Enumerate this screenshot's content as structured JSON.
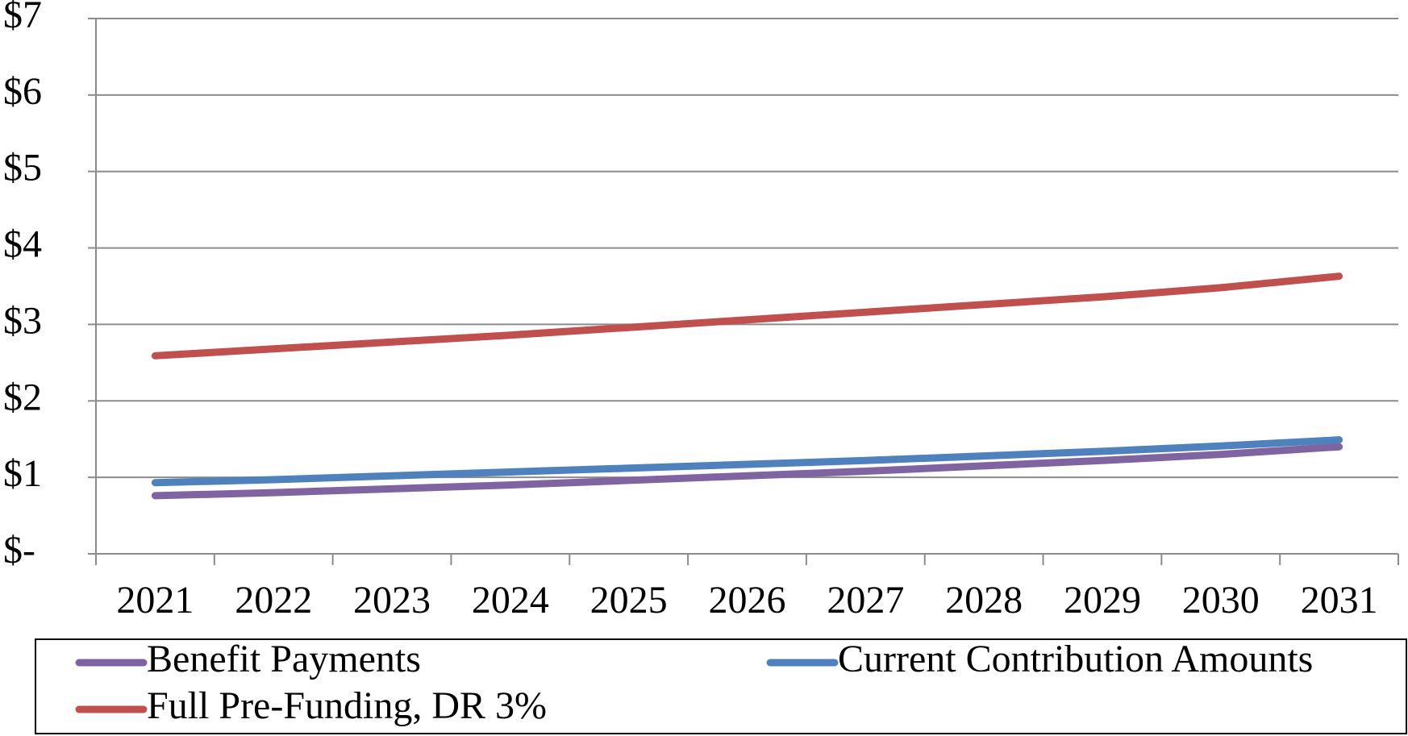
{
  "chart_data": {
    "type": "line",
    "categories": [
      "2021",
      "2022",
      "2023",
      "2024",
      "2025",
      "2026",
      "2027",
      "2028",
      "2029",
      "2030",
      "2031"
    ],
    "series": [
      {
        "name": "Benefit Payments",
        "color": "#8064a2",
        "values": [
          0.76,
          0.8,
          0.85,
          0.9,
          0.96,
          1.02,
          1.08,
          1.15,
          1.22,
          1.3,
          1.4
        ]
      },
      {
        "name": "Current Contribution Amounts",
        "color": "#4f81bd",
        "values": [
          0.93,
          0.97,
          1.02,
          1.07,
          1.12,
          1.17,
          1.22,
          1.28,
          1.34,
          1.41,
          1.49
        ]
      },
      {
        "name": "Full Pre-Funding, DR 3%",
        "color": "#c0504d",
        "values": [
          2.59,
          2.68,
          2.77,
          2.86,
          2.96,
          3.06,
          3.16,
          3.26,
          3.36,
          3.48,
          3.63
        ]
      }
    ],
    "ylim": [
      0,
      7
    ],
    "yticks": [
      {
        "value": 0,
        "label": "$-"
      },
      {
        "value": 1,
        "label": "$1"
      },
      {
        "value": 2,
        "label": "$2"
      },
      {
        "value": 3,
        "label": "$3"
      },
      {
        "value": 4,
        "label": "$4"
      },
      {
        "value": 5,
        "label": "$5"
      },
      {
        "value": 6,
        "label": "$6"
      },
      {
        "value": 7,
        "label": "$7"
      }
    ],
    "grid": true,
    "legend": "bottom"
  }
}
